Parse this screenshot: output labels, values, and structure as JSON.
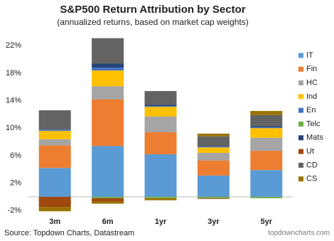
{
  "chart_data": {
    "type": "stacked-bar",
    "title": "S&P500 Return Attribution by Sector",
    "subtitle": "(annualized returns, based on market cap weights)",
    "source": "Source: Topdown Charts, Datastream",
    "watermark": "topdowncharts.com",
    "categories": [
      "3m",
      "6m",
      "1yr",
      "3yr",
      "5yr"
    ],
    "series": [
      {
        "name": "IT",
        "color": "#5b9bd5",
        "values": [
          4.2,
          7.4,
          6.2,
          3.1,
          3.9
        ]
      },
      {
        "name": "Fin",
        "color": "#ed7d31",
        "values": [
          3.3,
          6.8,
          3.2,
          2.2,
          2.8
        ]
      },
      {
        "name": "HC",
        "color": "#a5a5a5",
        "values": [
          0.9,
          1.9,
          2.3,
          1.1,
          1.9
        ]
      },
      {
        "name": "Ind",
        "color": "#ffc000",
        "values": [
          1.2,
          2.3,
          1.4,
          0.8,
          1.4
        ]
      },
      {
        "name": "En",
        "color": "#4472c4",
        "values": [
          0.2,
          0.4,
          0.1,
          0.1,
          0.1
        ]
      },
      {
        "name": "Telc",
        "color": "#70ad47",
        "values": [
          0,
          -0.2,
          -0.2,
          -0.2,
          -0.2
        ]
      },
      {
        "name": "Mats",
        "color": "#264478",
        "values": [
          0,
          0.6,
          0.2,
          0.1,
          0.2
        ]
      },
      {
        "name": "Ut",
        "color": "#9e480e",
        "values": [
          -1.5,
          -0.5,
          0,
          -0.1,
          0
        ]
      },
      {
        "name": "CD",
        "color": "#636363",
        "values": [
          2.8,
          3.7,
          2.0,
          1.4,
          1.6
        ]
      },
      {
        "name": "CS",
        "color": "#997300",
        "values": [
          -0.6,
          -0.3,
          -0.3,
          0.4,
          0.6
        ]
      }
    ],
    "ylim": [
      -2.5,
      24
    ],
    "yticks": [
      {
        "value": -2,
        "label": "-2%"
      },
      {
        "value": 2,
        "label": "2%"
      },
      {
        "value": 6,
        "label": "6%"
      },
      {
        "value": 10,
        "label": "10%"
      },
      {
        "value": 14,
        "label": "14%"
      },
      {
        "value": 18,
        "label": "18%"
      },
      {
        "value": 22,
        "label": "22%"
      }
    ],
    "grid": false,
    "legend": "right"
  }
}
